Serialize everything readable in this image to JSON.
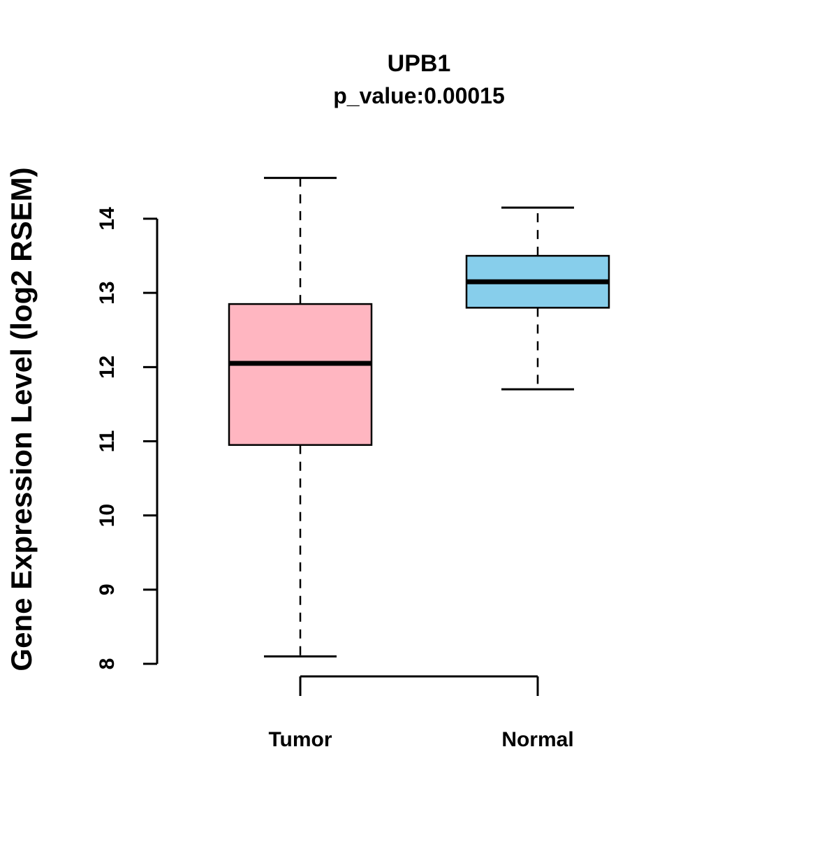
{
  "title": "UPB1",
  "subtitle": "p_value:0.00015",
  "ylabel": "Gene Expression Level (log2 RSEM)",
  "chart_data": {
    "type": "boxplot",
    "title": "UPB1",
    "subtitle": "p_value:0.00015",
    "ylabel": "Gene Expression Level (log2 RSEM)",
    "xlabel": "",
    "categories": [
      "Tumor",
      "Normal"
    ],
    "series": [
      {
        "name": "Tumor",
        "min": 8.1,
        "q1": 10.95,
        "median": 12.05,
        "q3": 12.85,
        "max": 14.55,
        "color": "#FFB6C1"
      },
      {
        "name": "Normal",
        "min": 11.7,
        "q1": 12.8,
        "median": 13.15,
        "q3": 13.5,
        "max": 14.15,
        "color": "#87CEEB"
      }
    ],
    "yticks": [
      8,
      9,
      10,
      11,
      12,
      13,
      14
    ],
    "ylim": [
      7.8,
      14.8
    ],
    "grid": false,
    "legend": "none",
    "colors": {
      "tumor_fill": "#FFB6C1",
      "normal_fill": "#87CEEB",
      "stroke": "#000000",
      "background": "#FFFFFF"
    }
  }
}
